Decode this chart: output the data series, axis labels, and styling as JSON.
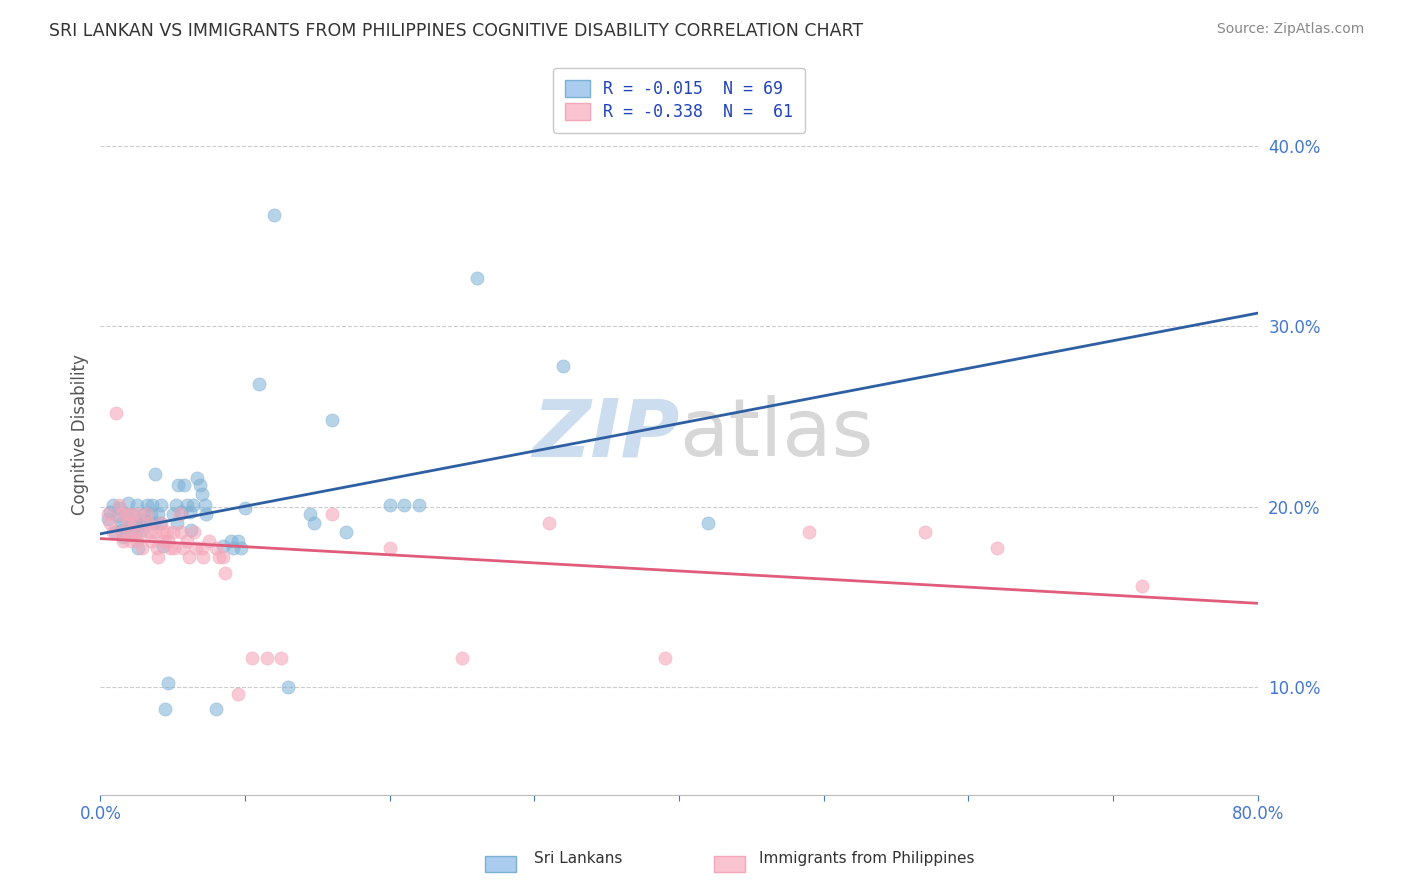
{
  "title": "SRI LANKAN VS IMMIGRANTS FROM PHILIPPINES COGNITIVE DISABILITY CORRELATION CHART",
  "source": "Source: ZipAtlas.com",
  "ylabel": "Cognitive Disability",
  "xlim": [
    0.0,
    0.8
  ],
  "ylim": [
    0.04,
    0.44
  ],
  "yticks": [
    0.1,
    0.2,
    0.3,
    0.4
  ],
  "yticklabels": [
    "10.0%",
    "20.0%",
    "30.0%",
    "40.0%"
  ],
  "xtick_positions": [
    0.0,
    0.1,
    0.2,
    0.3,
    0.4,
    0.5,
    0.6,
    0.7,
    0.8
  ],
  "sri_lanka_color": "#7bafd4",
  "philippines_color": "#f4a7b9",
  "sri_lanka_line_color": "#2e5fa3",
  "philippines_line_color": "#e05c7a",
  "background_color": "#ffffff",
  "grid_color": "#cccccc",
  "watermark_color": "#d8e4f0",
  "watermark_text": "ZIPatlas",
  "legend_label_1": "R = -0.015  N = 69",
  "legend_label_2": "R = -0.338  N =  61",
  "legend_text_color": "#2244bb",
  "sri_lanka_scatter": [
    [
      0.005,
      0.193
    ],
    [
      0.007,
      0.197
    ],
    [
      0.009,
      0.201
    ],
    [
      0.01,
      0.186
    ],
    [
      0.012,
      0.195
    ],
    [
      0.013,
      0.199
    ],
    [
      0.014,
      0.191
    ],
    [
      0.015,
      0.187
    ],
    [
      0.016,
      0.183
    ],
    [
      0.018,
      0.196
    ],
    [
      0.019,
      0.202
    ],
    [
      0.02,
      0.189
    ],
    [
      0.021,
      0.184
    ],
    [
      0.022,
      0.196
    ],
    [
      0.023,
      0.191
    ],
    [
      0.024,
      0.185
    ],
    [
      0.025,
      0.201
    ],
    [
      0.026,
      0.177
    ],
    [
      0.027,
      0.19
    ],
    [
      0.028,
      0.193
    ],
    [
      0.029,
      0.187
    ],
    [
      0.03,
      0.196
    ],
    [
      0.031,
      0.192
    ],
    [
      0.032,
      0.201
    ],
    [
      0.035,
      0.196
    ],
    [
      0.036,
      0.201
    ],
    [
      0.037,
      0.191
    ],
    [
      0.038,
      0.218
    ],
    [
      0.04,
      0.196
    ],
    [
      0.041,
      0.191
    ],
    [
      0.042,
      0.201
    ],
    [
      0.043,
      0.178
    ],
    [
      0.045,
      0.088
    ],
    [
      0.047,
      0.102
    ],
    [
      0.05,
      0.196
    ],
    [
      0.052,
      0.201
    ],
    [
      0.053,
      0.191
    ],
    [
      0.054,
      0.212
    ],
    [
      0.056,
      0.197
    ],
    [
      0.058,
      0.212
    ],
    [
      0.06,
      0.201
    ],
    [
      0.062,
      0.197
    ],
    [
      0.063,
      0.187
    ],
    [
      0.064,
      0.201
    ],
    [
      0.067,
      0.216
    ],
    [
      0.069,
      0.212
    ],
    [
      0.07,
      0.207
    ],
    [
      0.072,
      0.201
    ],
    [
      0.073,
      0.196
    ],
    [
      0.08,
      0.088
    ],
    [
      0.085,
      0.178
    ],
    [
      0.09,
      0.181
    ],
    [
      0.092,
      0.177
    ],
    [
      0.095,
      0.181
    ],
    [
      0.097,
      0.177
    ],
    [
      0.1,
      0.199
    ],
    [
      0.11,
      0.268
    ],
    [
      0.12,
      0.362
    ],
    [
      0.13,
      0.1
    ],
    [
      0.145,
      0.196
    ],
    [
      0.148,
      0.191
    ],
    [
      0.16,
      0.248
    ],
    [
      0.17,
      0.186
    ],
    [
      0.2,
      0.201
    ],
    [
      0.21,
      0.201
    ],
    [
      0.22,
      0.201
    ],
    [
      0.26,
      0.327
    ],
    [
      0.32,
      0.278
    ],
    [
      0.42,
      0.191
    ]
  ],
  "philippines_scatter": [
    [
      0.005,
      0.196
    ],
    [
      0.007,
      0.191
    ],
    [
      0.009,
      0.186
    ],
    [
      0.011,
      0.252
    ],
    [
      0.013,
      0.201
    ],
    [
      0.014,
      0.196
    ],
    [
      0.015,
      0.186
    ],
    [
      0.016,
      0.181
    ],
    [
      0.018,
      0.196
    ],
    [
      0.019,
      0.191
    ],
    [
      0.02,
      0.186
    ],
    [
      0.021,
      0.181
    ],
    [
      0.022,
      0.196
    ],
    [
      0.023,
      0.191
    ],
    [
      0.024,
      0.186
    ],
    [
      0.025,
      0.181
    ],
    [
      0.027,
      0.196
    ],
    [
      0.028,
      0.186
    ],
    [
      0.029,
      0.177
    ],
    [
      0.032,
      0.196
    ],
    [
      0.033,
      0.191
    ],
    [
      0.034,
      0.186
    ],
    [
      0.035,
      0.181
    ],
    [
      0.038,
      0.186
    ],
    [
      0.039,
      0.177
    ],
    [
      0.04,
      0.172
    ],
    [
      0.042,
      0.191
    ],
    [
      0.043,
      0.186
    ],
    [
      0.044,
      0.181
    ],
    [
      0.046,
      0.186
    ],
    [
      0.047,
      0.181
    ],
    [
      0.048,
      0.177
    ],
    [
      0.05,
      0.186
    ],
    [
      0.051,
      0.177
    ],
    [
      0.055,
      0.196
    ],
    [
      0.056,
      0.186
    ],
    [
      0.057,
      0.177
    ],
    [
      0.06,
      0.181
    ],
    [
      0.061,
      0.172
    ],
    [
      0.065,
      0.186
    ],
    [
      0.066,
      0.177
    ],
    [
      0.07,
      0.177
    ],
    [
      0.071,
      0.172
    ],
    [
      0.075,
      0.181
    ],
    [
      0.08,
      0.177
    ],
    [
      0.082,
      0.172
    ],
    [
      0.085,
      0.172
    ],
    [
      0.086,
      0.163
    ],
    [
      0.095,
      0.096
    ],
    [
      0.105,
      0.116
    ],
    [
      0.115,
      0.116
    ],
    [
      0.125,
      0.116
    ],
    [
      0.16,
      0.196
    ],
    [
      0.2,
      0.177
    ],
    [
      0.25,
      0.116
    ],
    [
      0.31,
      0.191
    ],
    [
      0.39,
      0.116
    ],
    [
      0.49,
      0.186
    ],
    [
      0.57,
      0.186
    ],
    [
      0.62,
      0.177
    ],
    [
      0.72,
      0.156
    ]
  ]
}
